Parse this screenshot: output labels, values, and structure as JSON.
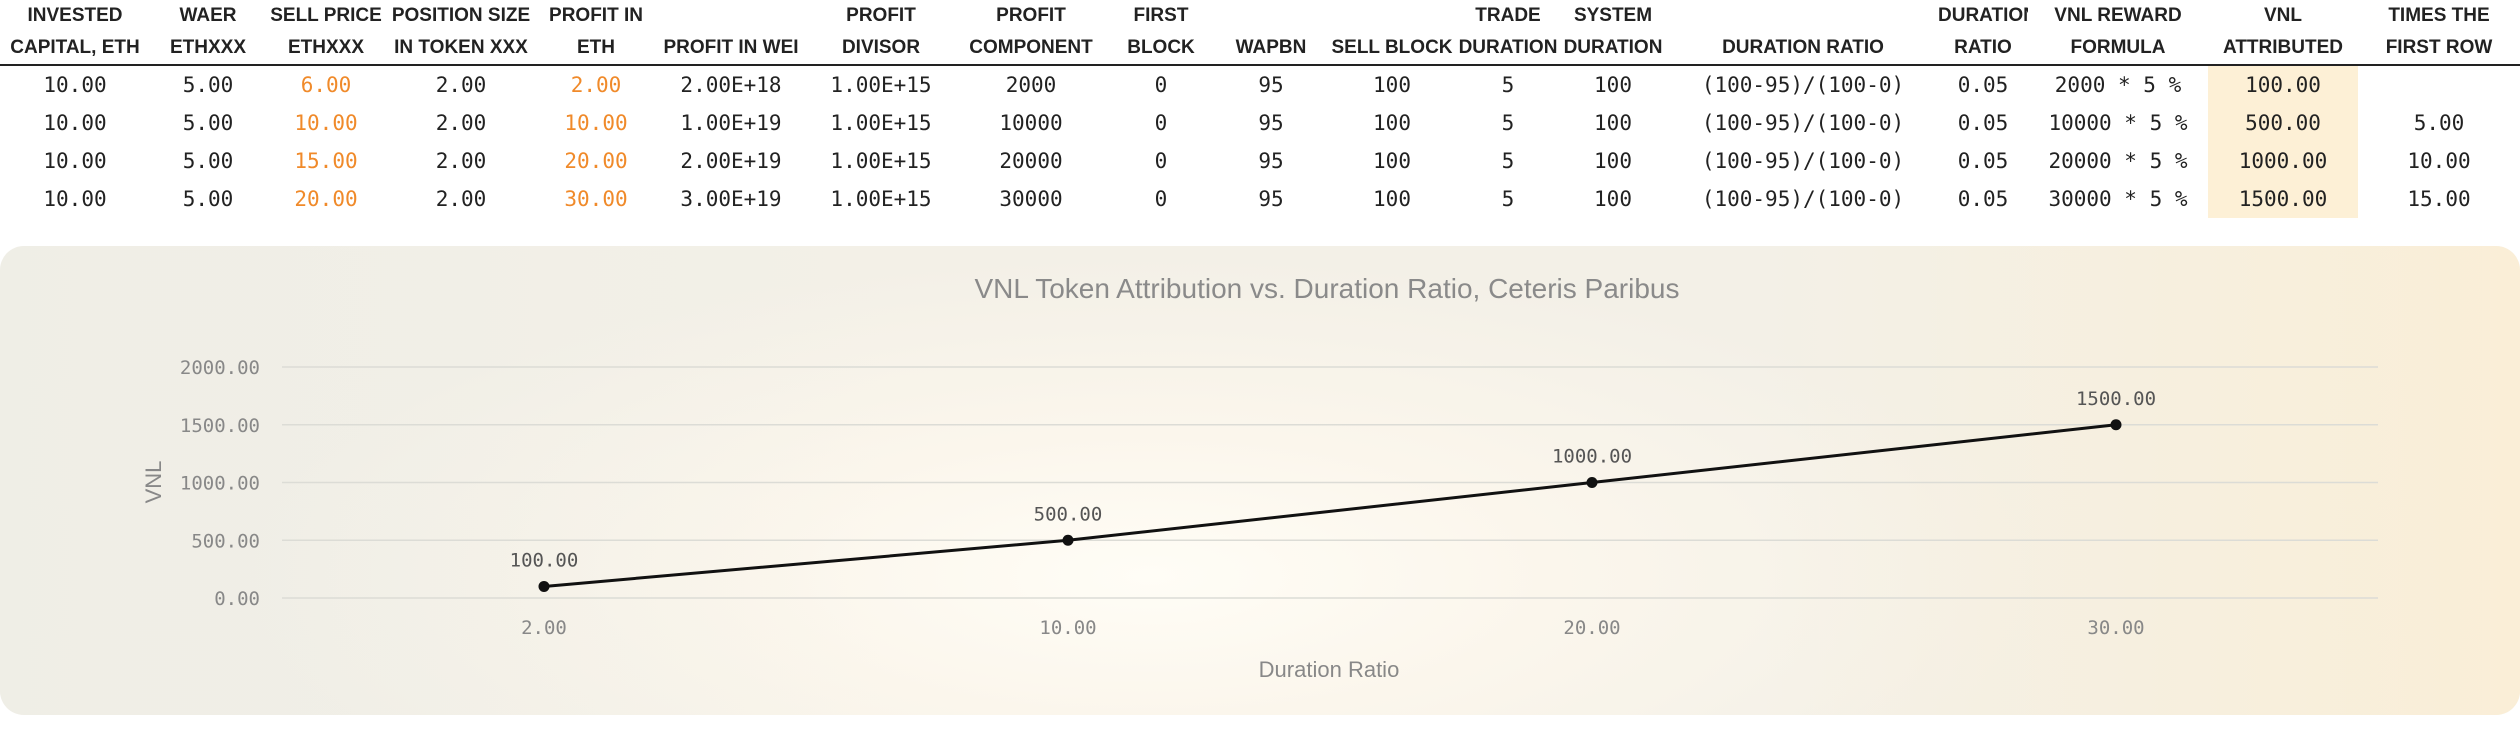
{
  "table": {
    "headers": [
      [
        "INVESTED",
        "CAPITAL, ETH"
      ],
      [
        "WAER",
        "ETHXXX"
      ],
      [
        "SELL PRICE",
        "ETHXXX"
      ],
      [
        "POSITION SIZE",
        "IN TOKEN XXX"
      ],
      [
        "PROFIT IN",
        "ETH"
      ],
      [
        "",
        "PROFIT IN WEI"
      ],
      [
        "PROFIT",
        "DIVISOR"
      ],
      [
        "PROFIT",
        "COMPONENT"
      ],
      [
        "FIRST",
        "BLOCK"
      ],
      [
        "",
        "WAPBN"
      ],
      [
        "",
        "SELL BLOCK"
      ],
      [
        "TRADE",
        "DURATION"
      ],
      [
        "SYSTEM",
        "DURATION"
      ],
      [
        "",
        "DURATION RATIO"
      ],
      [
        "DURATION",
        "RATIO"
      ],
      [
        "VNL REWARD",
        "FORMULA"
      ],
      [
        "VNL",
        "ATTRIBUTED"
      ],
      [
        "TIMES THE",
        "FIRST ROW"
      ]
    ],
    "rows": [
      [
        "10.00",
        "5.00",
        "6.00",
        "2.00",
        "2.00",
        "2.00E+18",
        "1.00E+15",
        "2000",
        "0",
        "95",
        "100",
        "5",
        "100",
        "(100-95)/(100-0)",
        "0.05",
        "2000 * 5 %",
        "100.00",
        ""
      ],
      [
        "10.00",
        "5.00",
        "10.00",
        "2.00",
        "10.00",
        "1.00E+19",
        "1.00E+15",
        "10000",
        "0",
        "95",
        "100",
        "5",
        "100",
        "(100-95)/(100-0)",
        "0.05",
        "10000 * 5 %",
        "500.00",
        "5.00"
      ],
      [
        "10.00",
        "5.00",
        "15.00",
        "2.00",
        "20.00",
        "2.00E+19",
        "1.00E+15",
        "20000",
        "0",
        "95",
        "100",
        "5",
        "100",
        "(100-95)/(100-0)",
        "0.05",
        "20000 * 5 %",
        "1000.00",
        "10.00"
      ],
      [
        "10.00",
        "5.00",
        "20.00",
        "2.00",
        "30.00",
        "3.00E+19",
        "1.00E+15",
        "30000",
        "0",
        "95",
        "100",
        "5",
        "100",
        "(100-95)/(100-0)",
        "0.05",
        "30000 * 5 %",
        "1500.00",
        "15.00"
      ]
    ],
    "orange_color": "#f08a2a",
    "highlight_color": "#fdf0d6"
  },
  "chart_data": {
    "type": "line",
    "title": "VNL Token Attribution vs. Duration Ratio, Ceteris Paribus",
    "xlabel": "Duration Ratio",
    "ylabel": "VNL",
    "categories": [
      "2.00",
      "10.00",
      "20.00",
      "30.00"
    ],
    "series": [
      {
        "values": [
          100,
          500,
          1000,
          1500
        ],
        "labels": [
          "100.00",
          "500.00",
          "1000.00",
          "1500.00"
        ]
      }
    ],
    "ylim": [
      0,
      2000
    ],
    "yticks": [
      "0.00",
      "500.00",
      "1000.00",
      "1500.00",
      "2000.00"
    ],
    "grid": true,
    "legend": "none",
    "line_color": "#111111"
  }
}
